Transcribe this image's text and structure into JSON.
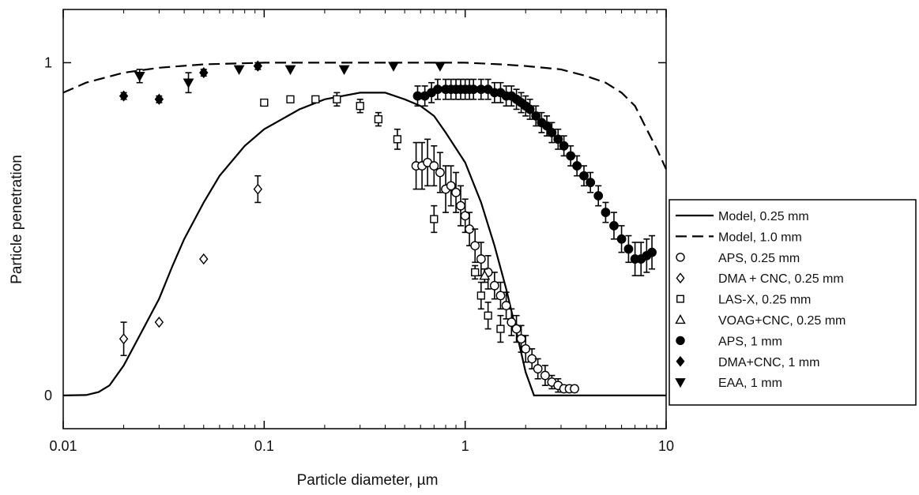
{
  "chart_data": {
    "type": "scatter",
    "title": "",
    "xlabel": "Particle diameter, µm",
    "ylabel": "Particle penetration",
    "xscale": "log",
    "xlim": [
      0.01,
      10
    ],
    "ylim": [
      -0.1,
      1.16
    ],
    "xticks": [
      {
        "value": 0.01,
        "label": "0.01"
      },
      {
        "value": 0.1,
        "label": "0.1"
      },
      {
        "value": 1,
        "label": "1"
      },
      {
        "value": 10,
        "label": "10"
      }
    ],
    "yticks": [
      {
        "value": 0,
        "label": "0"
      },
      {
        "value": 1,
        "label": "1"
      }
    ],
    "grid": false,
    "legend_position": "outside-right",
    "series": [
      {
        "name": "Model, 0.25 mm",
        "style": "line-solid",
        "points": [
          [
            0.01,
            0
          ],
          [
            0.013,
            0.001
          ],
          [
            0.015,
            0.01
          ],
          [
            0.017,
            0.03
          ],
          [
            0.02,
            0.09
          ],
          [
            0.025,
            0.2
          ],
          [
            0.03,
            0.29
          ],
          [
            0.035,
            0.39
          ],
          [
            0.04,
            0.47
          ],
          [
            0.05,
            0.58
          ],
          [
            0.06,
            0.66
          ],
          [
            0.08,
            0.75
          ],
          [
            0.1,
            0.8
          ],
          [
            0.15,
            0.86
          ],
          [
            0.2,
            0.89
          ],
          [
            0.3,
            0.91
          ],
          [
            0.4,
            0.91
          ],
          [
            0.5,
            0.89
          ],
          [
            0.6,
            0.87
          ],
          [
            0.7,
            0.84
          ],
          [
            0.8,
            0.79
          ],
          [
            1.0,
            0.7
          ],
          [
            1.2,
            0.58
          ],
          [
            1.4,
            0.45
          ],
          [
            1.6,
            0.32
          ],
          [
            1.8,
            0.19
          ],
          [
            2.0,
            0.07
          ],
          [
            2.2,
            0.0
          ],
          [
            3,
            0
          ],
          [
            10,
            0
          ]
        ]
      },
      {
        "name": "Model, 1.0 mm",
        "style": "line-dashed",
        "points": [
          [
            0.01,
            0.91
          ],
          [
            0.013,
            0.94
          ],
          [
            0.02,
            0.97
          ],
          [
            0.03,
            0.985
          ],
          [
            0.05,
            0.995
          ],
          [
            0.1,
            1.0
          ],
          [
            0.3,
            1.0
          ],
          [
            1,
            1.0
          ],
          [
            1.5,
            0.995
          ],
          [
            2,
            0.99
          ],
          [
            3,
            0.98
          ],
          [
            4,
            0.96
          ],
          [
            5,
            0.94
          ],
          [
            6,
            0.91
          ],
          [
            7,
            0.87
          ],
          [
            8,
            0.8
          ],
          [
            9,
            0.74
          ],
          [
            10,
            0.68
          ]
        ]
      },
      {
        "name": "APS, 0.25 mm",
        "marker": "circle-open",
        "points": [
          [
            0.57,
            0.69,
            0.07
          ],
          [
            0.61,
            0.69,
            0.07
          ],
          [
            0.65,
            0.7,
            0.07
          ],
          [
            0.7,
            0.69,
            0.06
          ],
          [
            0.75,
            0.67,
            0.06
          ],
          [
            0.8,
            0.62,
            0.07
          ],
          [
            0.85,
            0.63,
            0.06
          ],
          [
            0.9,
            0.61,
            0.06
          ],
          [
            0.95,
            0.57,
            0.06
          ],
          [
            1.0,
            0.54,
            0.05
          ],
          [
            1.05,
            0.5,
            0.05
          ],
          [
            1.12,
            0.45,
            0.05
          ],
          [
            1.2,
            0.41,
            0.05
          ],
          [
            1.3,
            0.37,
            0.05
          ],
          [
            1.4,
            0.33,
            0.04
          ],
          [
            1.5,
            0.3,
            0.04
          ],
          [
            1.6,
            0.27,
            0.04
          ],
          [
            1.7,
            0.22,
            0.04
          ],
          [
            1.8,
            0.2,
            0.04
          ],
          [
            1.9,
            0.17,
            0.04
          ],
          [
            2.0,
            0.14,
            0.04
          ],
          [
            2.15,
            0.11,
            0.03
          ],
          [
            2.3,
            0.08,
            0.03
          ],
          [
            2.5,
            0.06,
            0.03
          ],
          [
            2.7,
            0.04,
            0.02
          ],
          [
            2.9,
            0.03,
            0.02
          ],
          [
            3.1,
            0.02,
            0.01
          ],
          [
            3.3,
            0.02,
            0.01
          ],
          [
            3.5,
            0.02,
            0.01
          ]
        ]
      },
      {
        "name": "DMA + CNC, 0.25 mm",
        "marker": "diamond-open",
        "points": [
          [
            0.02,
            0.17,
            0.05
          ],
          [
            0.03,
            0.22,
            0.0
          ],
          [
            0.05,
            0.41,
            0.0
          ],
          [
            0.093,
            0.62,
            0.04
          ]
        ]
      },
      {
        "name": "LAS-X, 0.25 mm",
        "marker": "square-open",
        "points": [
          [
            0.1,
            0.88,
            0.0
          ],
          [
            0.135,
            0.89,
            0.0
          ],
          [
            0.18,
            0.89,
            0.0
          ],
          [
            0.23,
            0.89,
            0.02
          ],
          [
            0.3,
            0.87,
            0.02
          ],
          [
            0.37,
            0.83,
            0.02
          ],
          [
            0.46,
            0.77,
            0.03
          ],
          [
            0.7,
            0.53,
            0.04
          ],
          [
            1.12,
            0.37,
            0.02
          ],
          [
            1.2,
            0.3,
            0.04
          ],
          [
            1.3,
            0.24,
            0.04
          ],
          [
            1.5,
            0.2,
            0.04
          ]
        ]
      },
      {
        "name": "VOAG+CNC, 0.25 mm",
        "marker": "triangle-up-open",
        "points": [
          [
            1.25,
            0.36,
            0.02
          ]
        ]
      },
      {
        "name": "APS, 1 mm",
        "marker": "circle-filled",
        "points": [
          [
            0.58,
            0.9,
            0.03
          ],
          [
            0.63,
            0.9,
            0.03
          ],
          [
            0.68,
            0.91,
            0.03
          ],
          [
            0.73,
            0.92,
            0.03
          ],
          [
            0.8,
            0.92,
            0.03
          ],
          [
            0.85,
            0.92,
            0.03
          ],
          [
            0.9,
            0.92,
            0.03
          ],
          [
            0.95,
            0.92,
            0.03
          ],
          [
            1.0,
            0.92,
            0.03
          ],
          [
            1.05,
            0.92,
            0.03
          ],
          [
            1.1,
            0.92,
            0.03
          ],
          [
            1.2,
            0.92,
            0.03
          ],
          [
            1.3,
            0.92,
            0.03
          ],
          [
            1.4,
            0.91,
            0.03
          ],
          [
            1.5,
            0.91,
            0.03
          ],
          [
            1.6,
            0.9,
            0.03
          ],
          [
            1.7,
            0.9,
            0.03
          ],
          [
            1.8,
            0.89,
            0.03
          ],
          [
            1.9,
            0.88,
            0.03
          ],
          [
            2.0,
            0.87,
            0.03
          ],
          [
            2.1,
            0.86,
            0.03
          ],
          [
            2.25,
            0.84,
            0.03
          ],
          [
            2.4,
            0.82,
            0.03
          ],
          [
            2.55,
            0.81,
            0.03
          ],
          [
            2.7,
            0.79,
            0.03
          ],
          [
            2.9,
            0.77,
            0.03
          ],
          [
            3.1,
            0.75,
            0.03
          ],
          [
            3.35,
            0.72,
            0.03
          ],
          [
            3.6,
            0.69,
            0.03
          ],
          [
            3.9,
            0.66,
            0.03
          ],
          [
            4.2,
            0.64,
            0.03
          ],
          [
            4.6,
            0.6,
            0.03
          ],
          [
            5.0,
            0.55,
            0.03
          ],
          [
            5.5,
            0.51,
            0.04
          ],
          [
            6.0,
            0.47,
            0.04
          ],
          [
            6.5,
            0.44,
            0.04
          ],
          [
            7.0,
            0.41,
            0.05
          ],
          [
            7.5,
            0.41,
            0.05
          ],
          [
            8.0,
            0.42,
            0.05
          ],
          [
            8.5,
            0.43,
            0.05
          ]
        ]
      },
      {
        "name": "DMA+CNC, 1 mm",
        "marker": "diamond-filled",
        "points": [
          [
            0.02,
            0.9,
            0.01
          ],
          [
            0.03,
            0.89,
            0.01
          ],
          [
            0.05,
            0.97,
            0.01
          ],
          [
            0.093,
            0.99,
            0.01
          ]
        ]
      },
      {
        "name": "EAA, 1 mm",
        "marker": "triangle-down-filled",
        "points": [
          [
            0.024,
            0.96,
            0.02
          ],
          [
            0.042,
            0.94,
            0.03
          ],
          [
            0.075,
            0.98,
            0.0
          ],
          [
            0.135,
            0.98,
            0.0
          ],
          [
            0.25,
            0.98,
            0.0
          ],
          [
            0.44,
            0.99,
            0.0
          ],
          [
            0.75,
            0.99,
            0.0
          ]
        ]
      }
    ]
  }
}
